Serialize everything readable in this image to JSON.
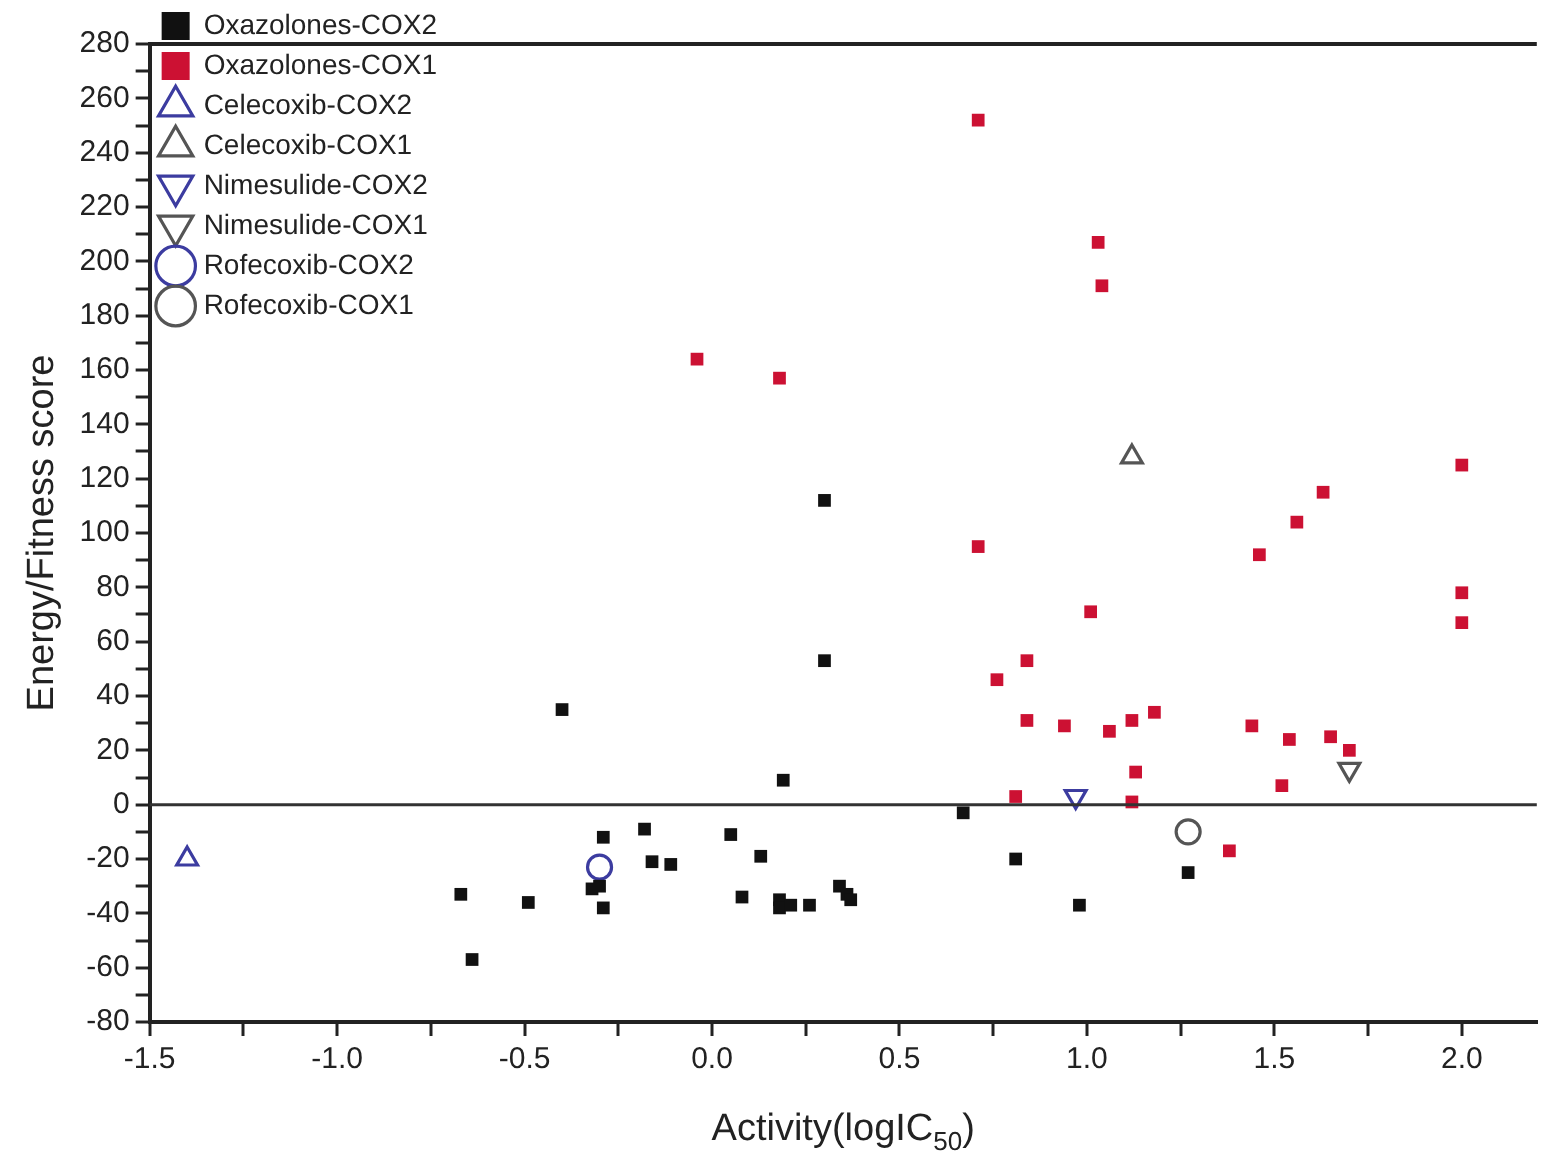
{
  "chart_data": {
    "type": "scatter",
    "xlabel": "Activity(logIC$_{50}$)",
    "ylabel": "Energy/Fitness score",
    "xlim": [
      -1.5,
      2.2
    ],
    "ylim": [
      -80,
      280
    ],
    "xticks": [
      -1.5,
      {
        "value": -1.25,
        "label": null
      },
      "-1.0",
      {
        "value": -0.75,
        "label": null
      },
      -0.5,
      {
        "value": -0.25,
        "label": null
      },
      {
        "value": 0,
        "label": "0.0"
      },
      {
        "value": 0.25,
        "label": null
      },
      0.5,
      {
        "value": 0.75,
        "label": null
      },
      {
        "value": 1,
        "label": "1.0"
      },
      {
        "value": 1.25,
        "label": null
      },
      1.5,
      {
        "value": 1.75,
        "label": null
      },
      {
        "value": 2,
        "label": "2.0"
      }
    ],
    "yticks": [
      -80,
      {
        "value": -70,
        "label": null
      },
      -60,
      {
        "value": -50,
        "label": null
      },
      -40,
      {
        "value": -30,
        "label": null
      },
      -20,
      {
        "value": -10,
        "label": null
      },
      0,
      {
        "value": 10,
        "label": null
      },
      20,
      {
        "value": 30,
        "label": null
      },
      40,
      {
        "value": 50,
        "label": null
      },
      60,
      {
        "value": 70,
        "label": null
      },
      80,
      {
        "value": 90,
        "label": null
      },
      100,
      {
        "value": 110,
        "label": null
      },
      120,
      {
        "value": 130,
        "label": null
      },
      140,
      {
        "value": 150,
        "label": null
      },
      160,
      {
        "value": 170,
        "label": null
      },
      180,
      {
        "value": 190,
        "label": null
      },
      200,
      {
        "value": 210,
        "label": null
      },
      220,
      {
        "value": 230,
        "label": null
      },
      240,
      {
        "value": 250,
        "label": null
      },
      260,
      {
        "value": 270,
        "label": null
      },
      280
    ],
    "legend": "top left",
    "grid": false,
    "ref_lines": [
      {
        "axis": "y",
        "value": 0,
        "color": "#333333"
      }
    ],
    "series": [
      {
        "name": "Oxazolones-COX2",
        "color": "#111111",
        "marker": "square",
        "x": [
          -0.67,
          -0.64,
          -0.49,
          -0.4,
          -0.32,
          -0.3,
          -0.29,
          -0.29,
          -0.18,
          -0.16,
          -0.11,
          0.05,
          0.08,
          0.13,
          0.18,
          0.18,
          0.19,
          0.21,
          0.26,
          0.3,
          0.3,
          0.34,
          0.36,
          0.37,
          0.67,
          0.81,
          0.98,
          1.27
        ],
        "values": [
          -33,
          -57,
          -36,
          35,
          -31,
          -30,
          -12,
          -38,
          -9,
          -21,
          -22,
          -11,
          -34,
          -19,
          -35,
          -38,
          9,
          -37,
          -37,
          112,
          53,
          -30,
          -33,
          -35,
          -3,
          -20,
          -37,
          -25
        ]
      },
      {
        "name": "Oxazolones-COX1",
        "color": "#cc1133",
        "marker": "square",
        "x": [
          -0.04,
          0.18,
          0.71,
          0.71,
          1.03,
          1.04,
          0.76,
          0.84,
          0.84,
          0.94,
          1.01,
          1.06,
          1.12,
          1.18,
          0.81,
          1.13,
          1.12,
          1.38,
          1.44,
          1.46,
          1.52,
          1.54,
          1.56,
          1.63,
          1.65,
          1.7,
          2.0,
          2.0,
          2.0
        ],
        "values": [
          164,
          157,
          252,
          95,
          207,
          191,
          46,
          53,
          31,
          29,
          71,
          27,
          31,
          34,
          3,
          12,
          1,
          -17,
          29,
          92,
          7,
          24,
          104,
          115,
          25,
          20,
          125,
          78,
          67
        ]
      },
      {
        "name": "Celecoxib-COX2",
        "color": "#3c3ca0",
        "marker": "triangle",
        "x": [
          -1.4
        ],
        "values": [
          -20
        ]
      },
      {
        "name": "Celecoxib-COX1",
        "color": "#555555",
        "marker": "triangle",
        "x": [
          1.12
        ],
        "values": [
          128
        ]
      },
      {
        "name": "Nimesulide-COX2",
        "color": "#3c3ca0",
        "marker": "triangle_down",
        "x": [
          0.97
        ],
        "values": [
          3
        ]
      },
      {
        "name": "Nimesulide-COX1",
        "color": "#555555",
        "marker": "triangle_down",
        "x": [
          1.7
        ],
        "values": [
          13
        ]
      },
      {
        "name": "Rofecoxib-COX2",
        "color": "#3c3ca0",
        "marker": "circle",
        "x": [
          -0.3
        ],
        "values": [
          -23
        ]
      },
      {
        "name": "Rofecoxib-COX1",
        "color": "#555555",
        "marker": "circle",
        "x": [
          1.27
        ],
        "values": [
          -10
        ]
      }
    ]
  }
}
